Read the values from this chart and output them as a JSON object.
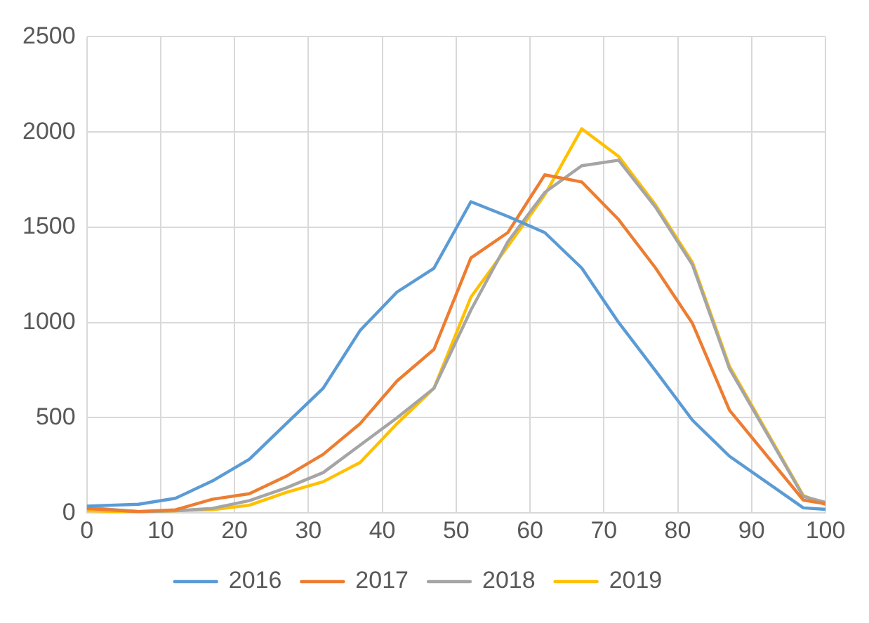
{
  "chart_data": {
    "type": "line",
    "x": [
      0,
      7,
      12,
      17,
      22,
      27,
      32,
      37,
      42,
      47,
      52,
      57,
      62,
      67,
      72,
      77,
      82,
      87,
      97,
      100
    ],
    "series": [
      {
        "name": "2016",
        "color": "#5b9bd5",
        "values": [
          36,
          46,
          77,
          168,
          282,
          469,
          655,
          958,
          1160,
          1285,
          1634,
          1557,
          1472,
          1286,
          1000,
          746,
          487,
          298,
          27,
          19
        ]
      },
      {
        "name": "2017",
        "color": "#ed7d31",
        "values": [
          24,
          7,
          17,
          72,
          101,
          193,
          308,
          469,
          693,
          859,
          1339,
          1472,
          1775,
          1738,
          1540,
          1286,
          995,
          540,
          68,
          48
        ]
      },
      {
        "name": "2018",
        "color": "#a5a5a5",
        "values": [
          29,
          7,
          12,
          24,
          65,
          132,
          212,
          356,
          500,
          655,
          1065,
          1424,
          1683,
          1823,
          1852,
          1605,
          1302,
          758,
          87,
          56
        ]
      },
      {
        "name": "2019",
        "color": "#ffc000",
        "values": [
          12,
          5,
          12,
          17,
          41,
          108,
          164,
          265,
          469,
          655,
          1133,
          1400,
          1670,
          2017,
          1872,
          1617,
          1315,
          770,
          92,
          44
        ]
      }
    ],
    "xlim": [
      0,
      100
    ],
    "xticks": [
      0,
      10,
      20,
      30,
      40,
      50,
      60,
      70,
      80,
      90,
      100
    ],
    "ylim": [
      0,
      2500
    ],
    "yticks": [
      0,
      500,
      1000,
      1500,
      2000,
      2500
    ],
    "grid": true,
    "legend": "bottom",
    "marker": "none",
    "line_style": "solid"
  }
}
